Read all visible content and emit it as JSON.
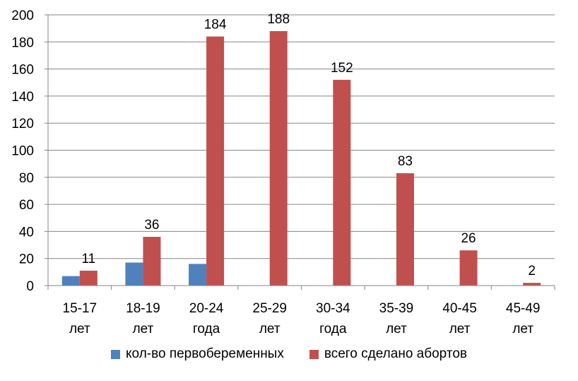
{
  "chart_data": {
    "type": "bar",
    "categories": [
      [
        "15-17",
        "лет"
      ],
      [
        "18-19",
        "лет"
      ],
      [
        "20-24",
        "года"
      ],
      [
        "25-29",
        "лет"
      ],
      [
        "30-34",
        "года"
      ],
      [
        "35-39",
        "лет"
      ],
      [
        "40-45",
        "лет"
      ],
      [
        "45-49",
        "лет"
      ]
    ],
    "series": [
      {
        "name": "кол-во первобеременных",
        "color": "#4F81BD",
        "values": [
          7,
          17,
          16,
          null,
          null,
          null,
          null,
          null
        ],
        "show_labels": false
      },
      {
        "name": "всего сделано абортов",
        "color": "#C0504D",
        "values": [
          11,
          36,
          184,
          188,
          152,
          83,
          26,
          2
        ],
        "show_labels": true
      }
    ],
    "ylim": [
      0,
      200
    ],
    "yticks": [
      0,
      20,
      40,
      60,
      80,
      100,
      120,
      140,
      160,
      180,
      200
    ],
    "grid": true,
    "legend_position": "bottom",
    "gridline_color": "#868686"
  }
}
